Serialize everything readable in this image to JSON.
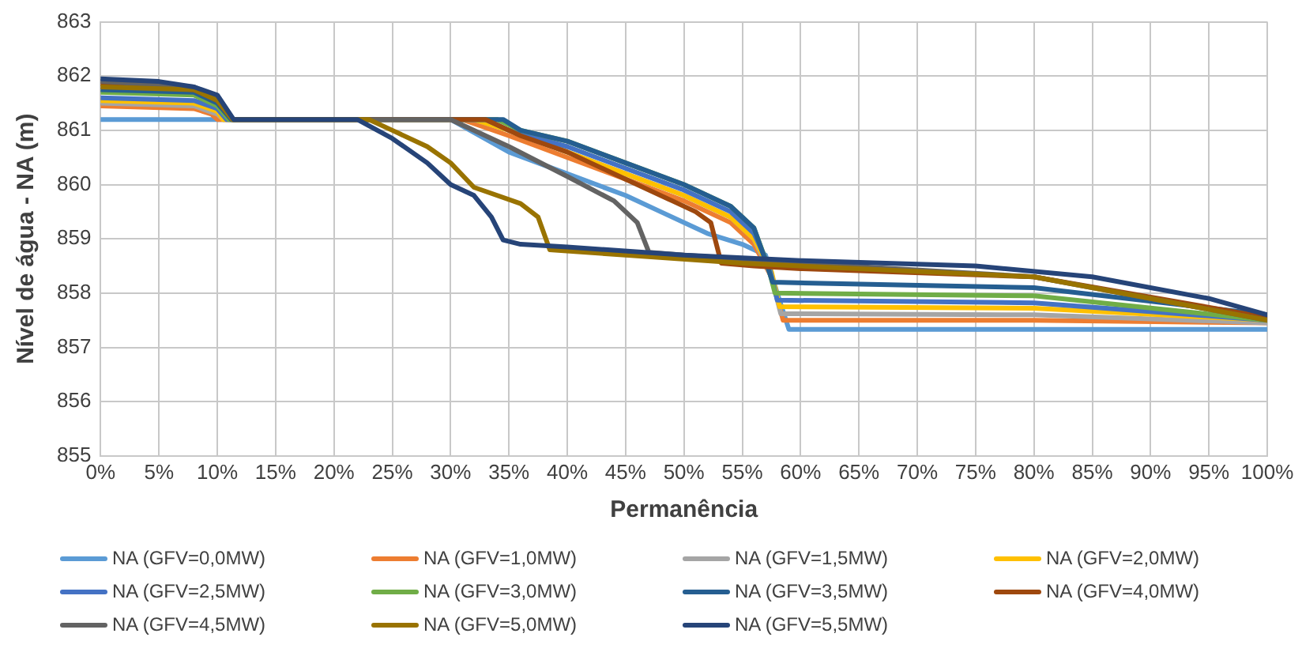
{
  "chart_data": {
    "type": "line",
    "xlabel": "Permanência",
    "ylabel": "Nível de água - NA (m)",
    "xlim": [
      0,
      100
    ],
    "xticks": [
      {
        "value": 0,
        "label": "0%"
      },
      {
        "value": 5,
        "label": "5%"
      },
      {
        "value": 10,
        "label": "10%"
      },
      {
        "value": 15,
        "label": "15%"
      },
      {
        "value": 20,
        "label": "20%"
      },
      {
        "value": 25,
        "label": "25%"
      },
      {
        "value": 30,
        "label": "30%"
      },
      {
        "value": 35,
        "label": "35%"
      },
      {
        "value": 40,
        "label": "40%"
      },
      {
        "value": 45,
        "label": "45%"
      },
      {
        "value": 50,
        "label": "50%"
      },
      {
        "value": 55,
        "label": "55%"
      },
      {
        "value": 60,
        "label": "60%"
      },
      {
        "value": 65,
        "label": "65%"
      },
      {
        "value": 70,
        "label": "70%"
      },
      {
        "value": 75,
        "label": "75%"
      },
      {
        "value": 80,
        "label": "80%"
      },
      {
        "value": 85,
        "label": "85%"
      },
      {
        "value": 90,
        "label": "90%"
      },
      {
        "value": 95,
        "label": "95%"
      },
      {
        "value": 100,
        "label": "100%"
      }
    ],
    "ylim": [
      855,
      863
    ],
    "yticks": [
      855,
      856,
      857,
      858,
      859,
      860,
      861,
      862,
      863
    ],
    "grid": true,
    "legend": "bottom",
    "marker": "none",
    "line_style": "solid",
    "series": [
      {
        "name": "NA (GFV=0,0MW)",
        "color": "#5b9bd5",
        "x": [
          0,
          9,
          30,
          35,
          40,
          45,
          48,
          52,
          55,
          57,
          58,
          59,
          80,
          100
        ],
        "values": [
          861.2,
          861.2,
          861.2,
          860.6,
          860.2,
          859.8,
          859.5,
          859.1,
          858.9,
          858.7,
          858.0,
          857.33,
          857.33,
          857.33
        ]
      },
      {
        "name": "NA (GFV=1,0MW)",
        "color": "#ed7d31",
        "x": [
          0,
          8,
          9.5,
          10,
          31,
          35,
          40,
          45,
          50,
          54,
          56,
          57.5,
          58.5,
          80,
          100
        ],
        "values": [
          861.45,
          861.4,
          861.3,
          861.2,
          861.2,
          860.9,
          860.5,
          860.1,
          859.7,
          859.3,
          858.9,
          858.3,
          857.5,
          857.5,
          857.45
        ]
      },
      {
        "name": "NA (GFV=1,5MW)",
        "color": "#a5a5a5",
        "x": [
          0,
          8,
          10,
          10.5,
          32,
          35,
          40,
          45,
          50,
          54,
          56,
          57.5,
          58.3,
          80,
          100
        ],
        "values": [
          861.5,
          861.45,
          861.3,
          861.2,
          861.2,
          861.0,
          860.6,
          860.2,
          859.8,
          859.4,
          859.0,
          858.3,
          857.62,
          857.6,
          857.45
        ]
      },
      {
        "name": "NA (GFV=2,0MW)",
        "color": "#ffc000",
        "x": [
          0,
          8,
          10,
          10.5,
          32,
          35,
          40,
          45,
          50,
          54,
          56,
          57.5,
          58.2,
          80,
          100
        ],
        "values": [
          861.55,
          861.5,
          861.35,
          861.2,
          861.2,
          861.0,
          860.6,
          860.2,
          859.8,
          859.4,
          859.0,
          858.4,
          857.75,
          857.72,
          857.5
        ]
      },
      {
        "name": "NA (GFV=2,5MW)",
        "color": "#4472c4",
        "x": [
          0,
          8,
          10,
          10.8,
          33,
          35,
          40,
          45,
          50,
          54,
          56,
          57.3,
          58,
          80,
          100
        ],
        "values": [
          861.6,
          861.55,
          861.4,
          861.2,
          861.2,
          861.0,
          860.7,
          860.3,
          859.9,
          859.5,
          859.1,
          858.5,
          857.87,
          857.82,
          857.5
        ]
      },
      {
        "name": "NA (GFV=3,0MW)",
        "color": "#70ad47",
        "x": [
          0,
          8,
          10,
          11,
          34,
          36,
          40,
          45,
          50,
          54,
          56,
          57.2,
          57.8,
          80,
          100
        ],
        "values": [
          861.7,
          861.65,
          861.45,
          861.2,
          861.2,
          861.0,
          860.8,
          860.4,
          860.0,
          859.6,
          859.2,
          858.5,
          858.0,
          857.95,
          857.5
        ]
      },
      {
        "name": "NA (GFV=3,5MW)",
        "color": "#255e91",
        "x": [
          0,
          8,
          10,
          11.2,
          34.5,
          36,
          40,
          45,
          50,
          54,
          56,
          57,
          57.6,
          80,
          100
        ],
        "values": [
          861.75,
          861.7,
          861.5,
          861.2,
          861.2,
          861.0,
          860.8,
          860.4,
          860.0,
          859.6,
          859.2,
          858.6,
          858.2,
          858.1,
          857.6
        ]
      },
      {
        "name": "NA (GFV=4,0MW)",
        "color": "#9e480e",
        "x": [
          0,
          8,
          10,
          11.3,
          33,
          36,
          40,
          45,
          49,
          51,
          52.3,
          53.2,
          56,
          60,
          80,
          100
        ],
        "values": [
          861.85,
          861.75,
          861.55,
          861.2,
          861.2,
          860.9,
          860.6,
          860.1,
          859.7,
          859.5,
          859.3,
          858.55,
          858.5,
          858.45,
          858.3,
          857.55
        ]
      },
      {
        "name": "NA (GFV=4,5MW)",
        "color": "#636363",
        "x": [
          0,
          8,
          10,
          11.3,
          30,
          35,
          40,
          44,
          46,
          47,
          50,
          60,
          80,
          100
        ],
        "values": [
          861.9,
          861.8,
          861.6,
          861.2,
          861.2,
          860.7,
          860.15,
          859.7,
          859.3,
          858.75,
          858.7,
          858.55,
          858.3,
          857.5
        ]
      },
      {
        "name": "NA (GFV=5,0MW)",
        "color": "#997300",
        "x": [
          0,
          8,
          10,
          11.3,
          23,
          25,
          28,
          30,
          32,
          36,
          37.5,
          38.5,
          45,
          55,
          60,
          80,
          100
        ],
        "values": [
          861.8,
          861.75,
          861.55,
          861.2,
          861.2,
          861.0,
          860.7,
          860.4,
          859.95,
          859.65,
          859.4,
          858.8,
          858.7,
          858.55,
          858.5,
          858.3,
          857.5
        ]
      },
      {
        "name": "NA (GFV=5,5MW)",
        "color": "#264478",
        "x": [
          0,
          5,
          8,
          10,
          11.4,
          22,
          25,
          28,
          30,
          32,
          33.5,
          34.5,
          36,
          40,
          50,
          60,
          75,
          85,
          95,
          100
        ],
        "values": [
          861.95,
          861.9,
          861.8,
          861.65,
          861.2,
          861.2,
          860.85,
          860.4,
          860.0,
          859.8,
          859.4,
          858.98,
          858.9,
          858.85,
          858.7,
          858.6,
          858.5,
          858.3,
          857.9,
          857.6
        ]
      }
    ]
  }
}
